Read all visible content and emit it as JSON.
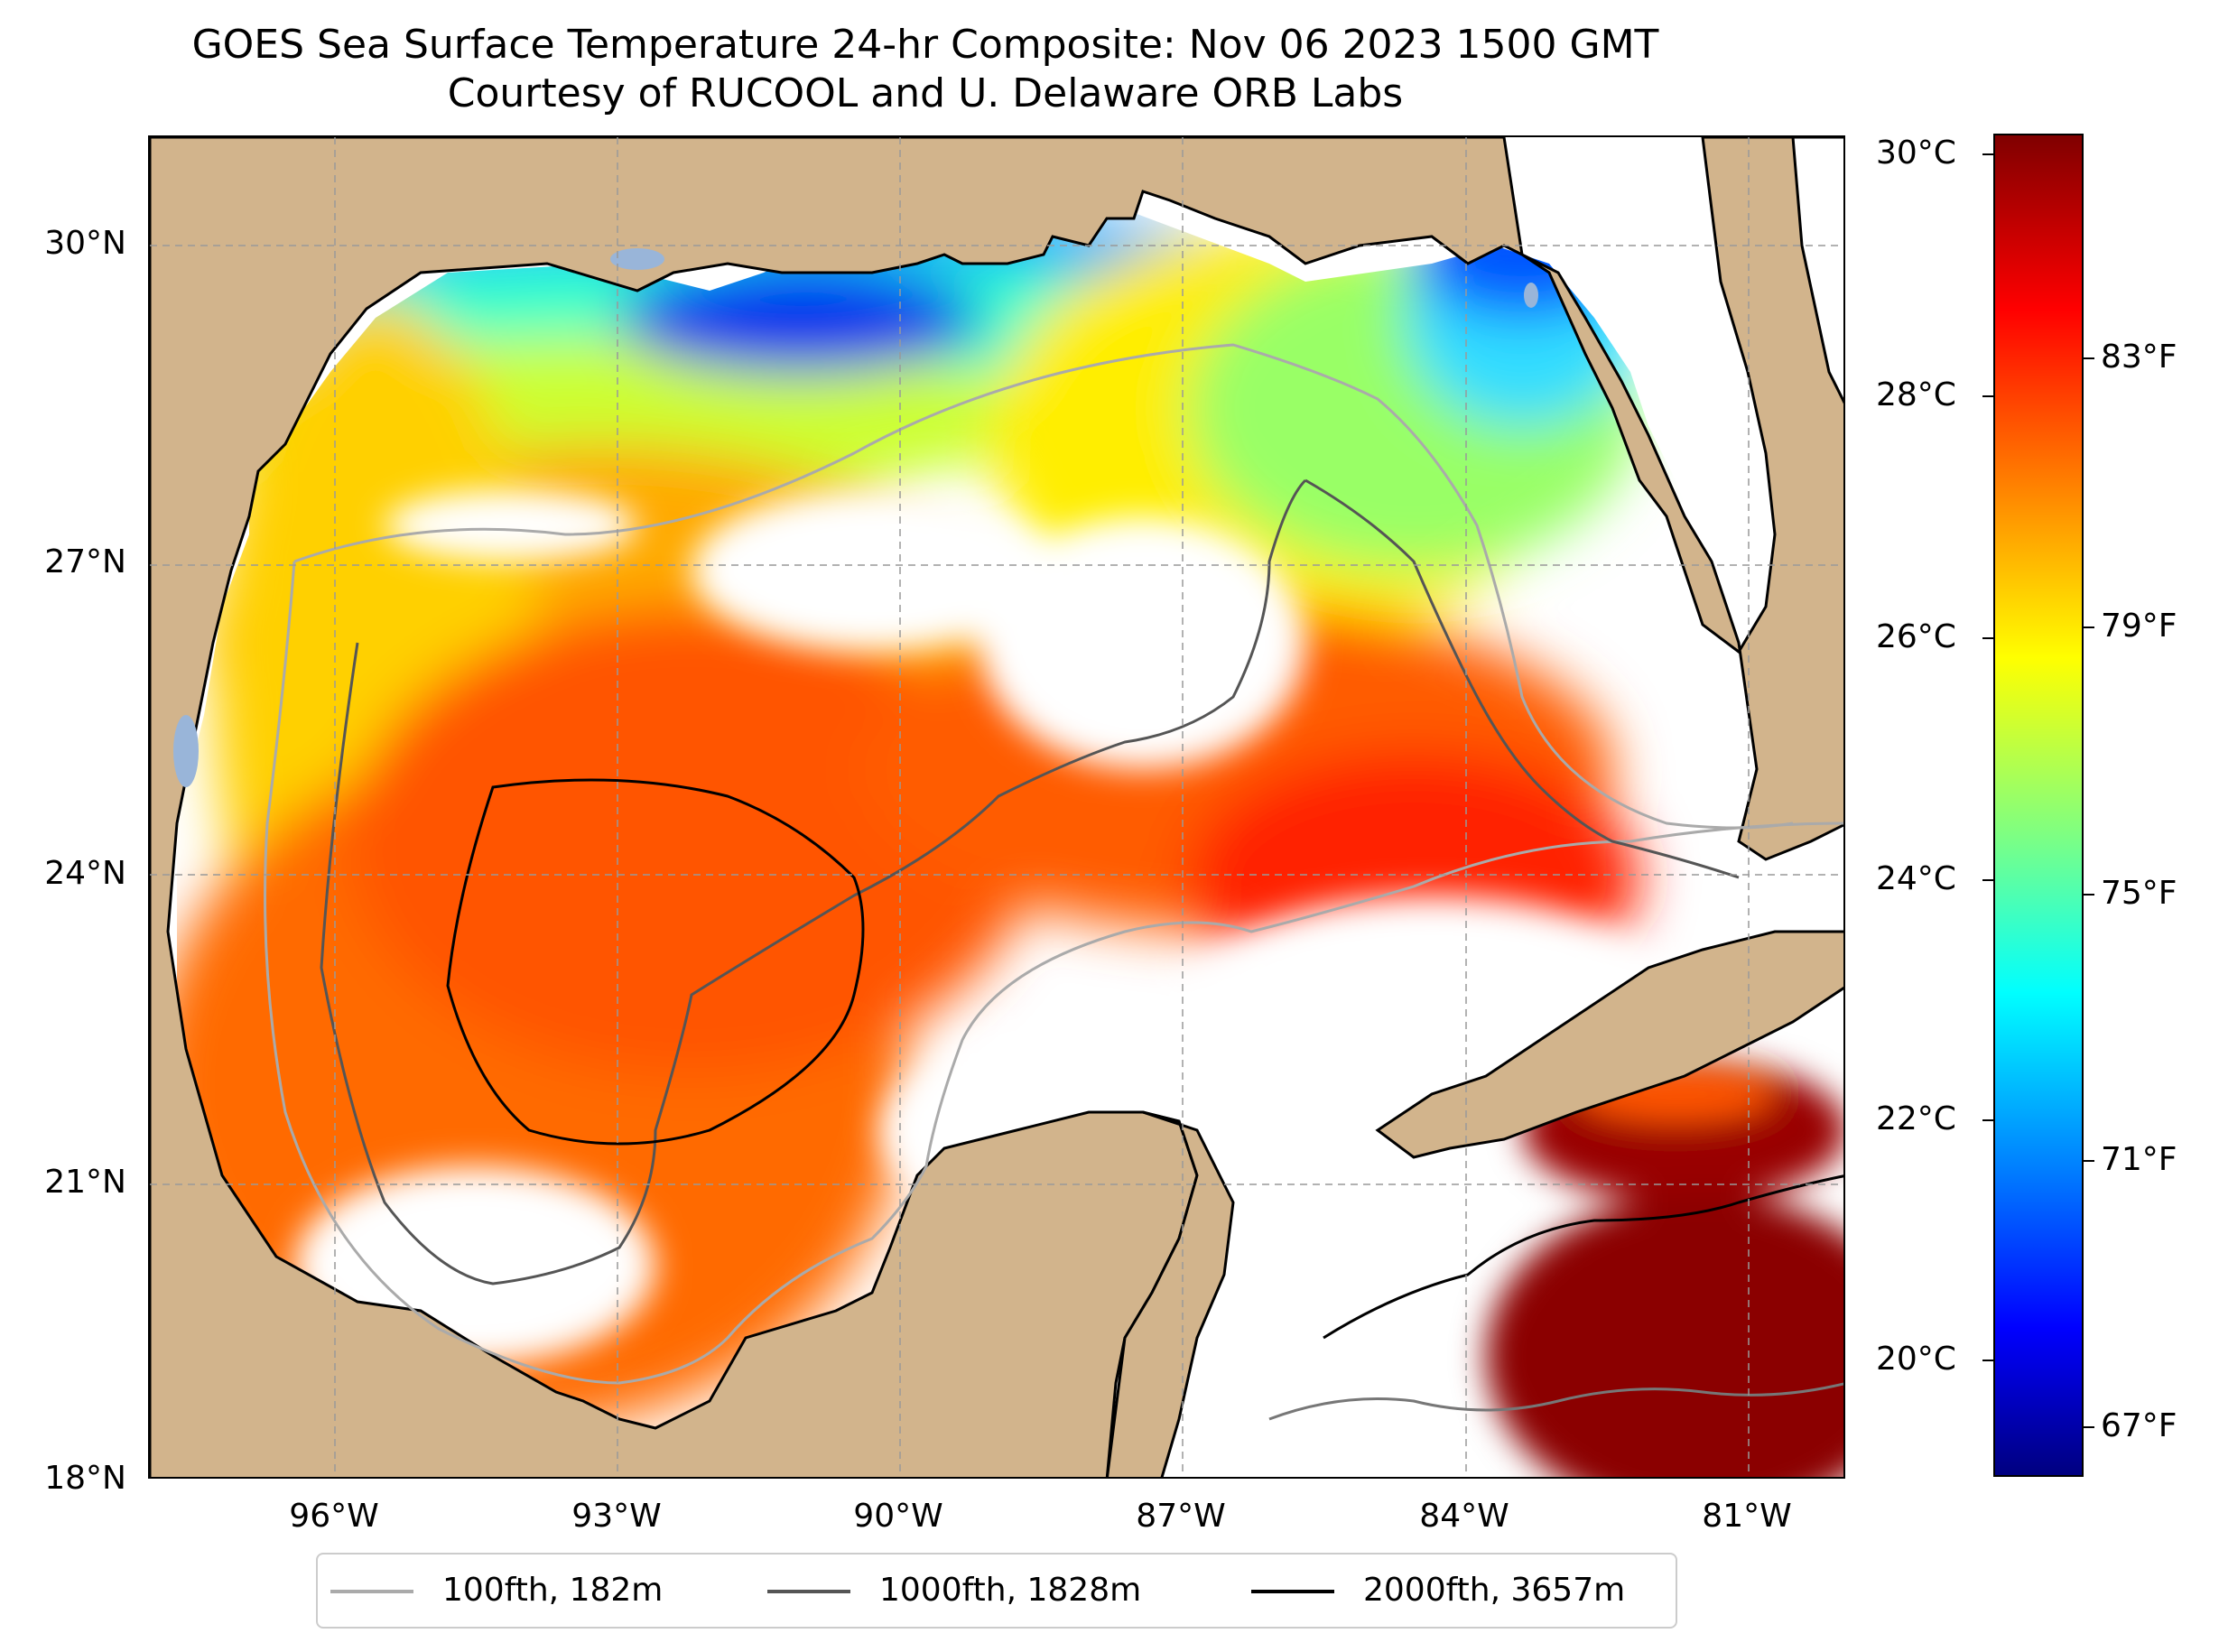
{
  "title": {
    "line1": "GOES Sea Surface Temperature 24-hr Composite: Nov 06 2023 1500 GMT",
    "line2": "Courtesy of RUCOOL and U. Delaware ORB Labs"
  },
  "axes": {
    "lat_labels": [
      "30°N",
      "27°N",
      "24°N",
      "21°N",
      "18°N"
    ],
    "lon_labels": [
      "96°W",
      "93°W",
      "90°W",
      "87°W",
      "84°W",
      "81°W"
    ],
    "lon_range": [
      -98,
      -80
    ],
    "lat_range": [
      18,
      31
    ]
  },
  "colorbar": {
    "colormap": "jet",
    "celsius_labels": [
      "30°C",
      "28°C",
      "26°C",
      "24°C",
      "22°C",
      "20°C"
    ],
    "fahrenheit_labels": [
      "83°F",
      "79°F",
      "75°F",
      "71°F",
      "67°F"
    ],
    "range_celsius": [
      19,
      30.2
    ]
  },
  "legend": [
    {
      "label": "100fth, 182m",
      "color": "#aaaaaa"
    },
    {
      "label": "1000fth, 1828m",
      "color": "#555555"
    },
    {
      "label": "2000fth, 3657m",
      "color": "#000000"
    }
  ],
  "colors": {
    "land": "#d2b48c",
    "lakes": "#99b5d9",
    "no_data": "#ffffff"
  }
}
